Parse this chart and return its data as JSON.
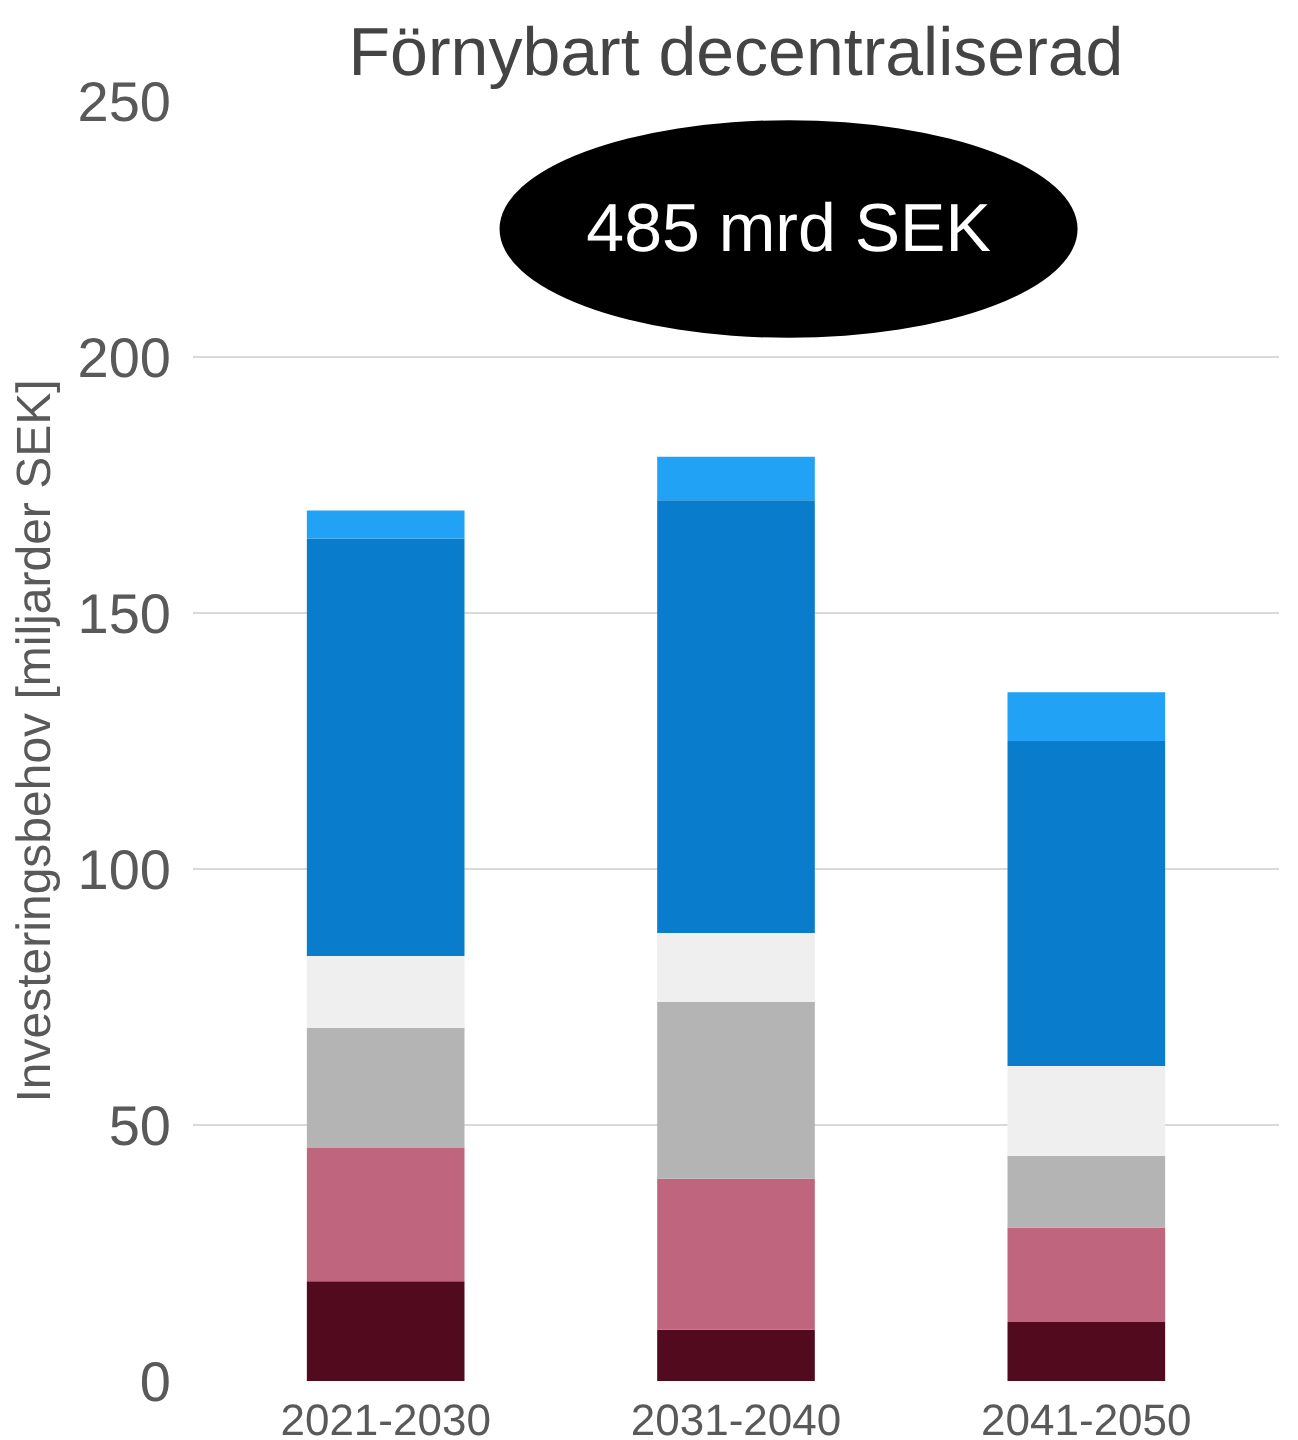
{
  "chart_data": {
    "type": "bar",
    "stacked": true,
    "title": "Förnybart decentraliserad",
    "ylabel": "Investeringsbehov [miljarder SEK]",
    "categories": [
      "2021-2030",
      "2031-2040",
      "2041-2050"
    ],
    "series": [
      {
        "color": "#520a1e",
        "values": [
          19.5,
          10,
          11.5
        ]
      },
      {
        "color": "#c0657e",
        "values": [
          26,
          29.5,
          18.5
        ]
      },
      {
        "color": "#b4b4b4",
        "values": [
          23.5,
          34.5,
          14
        ]
      },
      {
        "color": "#efefef",
        "values": [
          14,
          13.5,
          17.5
        ]
      },
      {
        "color": "#0a7ccc",
        "values": [
          81.5,
          84.5,
          63.5
        ]
      },
      {
        "color": "#22a2f5",
        "values": [
          5.5,
          8.5,
          9.5
        ]
      }
    ],
    "ylim": [
      0,
      250
    ],
    "yticks": [
      0,
      50,
      100,
      150,
      200,
      250
    ],
    "grid": "y",
    "annotations": [
      "485 mrd SEK"
    ]
  }
}
